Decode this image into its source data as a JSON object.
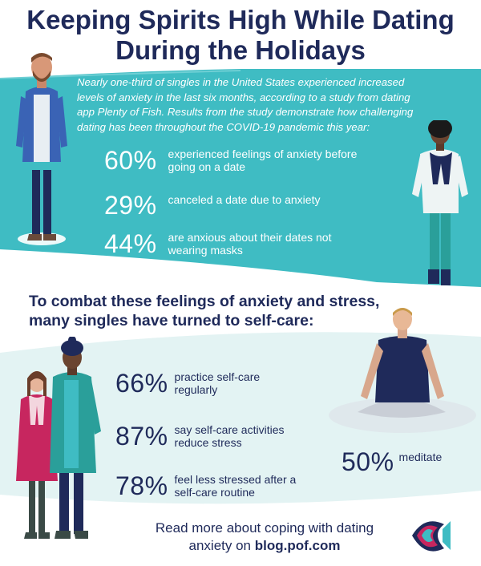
{
  "title": {
    "line1": "Keeping Spirits High While Dating",
    "line2": "During the Holidays"
  },
  "intro": "Nearly one-third of singles in the United States experienced increased levels of anxiety in the last six months, according to a study from dating app Plenty of Fish. Results from the study demonstrate how challenging dating has been throughout the COVID-19 pandemic this year:",
  "anxiety_stats": [
    {
      "pct": "60%",
      "line1": "experienced feelings of anxiety before",
      "line2": "going on a date"
    },
    {
      "pct": "29%",
      "line1": "canceled a date due to anxiety",
      "line2": ""
    },
    {
      "pct": "44%",
      "line1": "are anxious about their dates not",
      "line2": "wearing masks"
    }
  ],
  "selfcare_heading": {
    "line1": "To combat these feelings of anxiety and stress,",
    "line2": "many singles have turned to self-care:"
  },
  "selfcare_stats": [
    {
      "pct": "66%",
      "line1": "practice self-care",
      "line2": "regularly"
    },
    {
      "pct": "87%",
      "line1": "say self-care activities",
      "line2": "reduce stress"
    },
    {
      "pct": "78%",
      "line1": "feel less stressed after a",
      "line2": "self-care routine"
    }
  ],
  "meditate": {
    "pct": "50%",
    "label": "meditate"
  },
  "footer": {
    "line1": "Read more about coping with dating",
    "line2_prefix": "anxiety on ",
    "link": "blog.pof.com"
  },
  "colors": {
    "navy": "#1f2a5a",
    "teal": "#3fbcc3",
    "light_teal": "#e3f3f3",
    "pink": "#c7265f",
    "grey_text": "#ffffff"
  }
}
